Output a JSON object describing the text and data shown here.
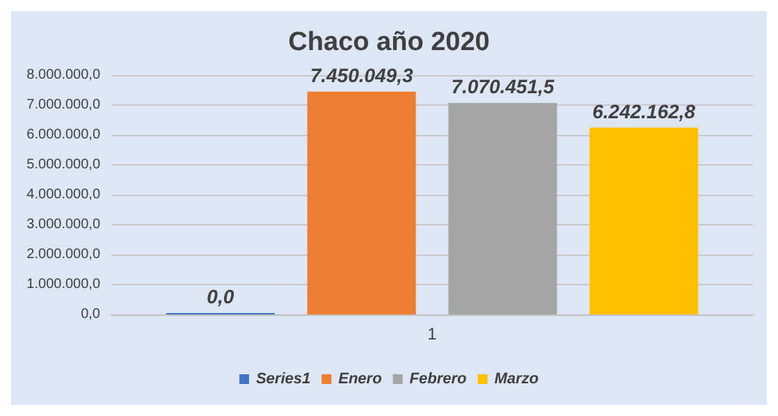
{
  "chart_data": {
    "type": "bar",
    "title": "Chaco año 2020",
    "categories": [
      "1"
    ],
    "series": [
      {
        "name": "Series1",
        "color": "#4472c4",
        "values": [
          0
        ],
        "value_labels": [
          "0,0"
        ]
      },
      {
        "name": "Enero",
        "color": "#ed7d31",
        "values": [
          7450049.3
        ],
        "value_labels": [
          "7.450.049,3"
        ]
      },
      {
        "name": "Febrero",
        "color": "#a5a5a5",
        "values": [
          7070451.5
        ],
        "value_labels": [
          "7.070.451,5"
        ]
      },
      {
        "name": "Marzo",
        "color": "#ffc000",
        "values": [
          6242162.8
        ],
        "value_labels": [
          "6.242.162,8"
        ]
      }
    ],
    "ylim": [
      0,
      8000000
    ],
    "yticks": [
      {
        "value": 0,
        "label": "0,0"
      },
      {
        "value": 1000000,
        "label": "1.000.000,0"
      },
      {
        "value": 2000000,
        "label": "2.000.000,0"
      },
      {
        "value": 3000000,
        "label": "3.000.000,0"
      },
      {
        "value": 4000000,
        "label": "4.000.000,0"
      },
      {
        "value": 5000000,
        "label": "5.000.000,0"
      },
      {
        "value": 6000000,
        "label": "6.000.000,0"
      },
      {
        "value": 7000000,
        "label": "7.000.000,0"
      },
      {
        "value": 8000000,
        "label": "8.000.000,0"
      }
    ],
    "grid": "y",
    "legend": "bottom"
  }
}
